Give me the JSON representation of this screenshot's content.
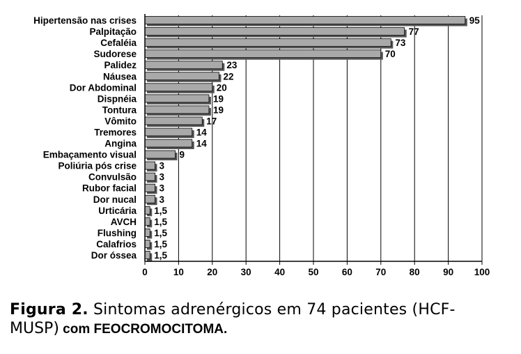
{
  "chart_data": {
    "type": "bar",
    "orientation": "horizontal",
    "categories": [
      "Hipertensão nas crises",
      "Palpitação",
      "Cefaléia",
      "Sudorese",
      "Palidez",
      "Náusea",
      "Dor Abdominal",
      "Dispnéia",
      "Tontura",
      "Vômito",
      "Tremores",
      "Angina",
      "Embaçamento visual",
      "Poliúria pós crise",
      "Convulsão",
      "Rubor facial",
      "Dor nucal",
      "Urticária",
      "AVCH",
      "Flushing",
      "Calafrios",
      "Dor óssea"
    ],
    "values": [
      95,
      77,
      73,
      70,
      23,
      22,
      20,
      19,
      19,
      17,
      14,
      14,
      9,
      3,
      3,
      3,
      3,
      1.5,
      1.5,
      1.5,
      1.5,
      1.5
    ],
    "value_labels": [
      "95",
      "77",
      "73",
      "70",
      "23",
      "22",
      "20",
      "19",
      "19",
      "17",
      "14",
      "14",
      "9",
      "3",
      "3",
      "3",
      "3",
      "1,5",
      "1,5",
      "1,5",
      "1,5",
      "1,5"
    ],
    "xlim": [
      0,
      100
    ],
    "xticks": [
      0,
      10,
      20,
      30,
      40,
      50,
      60,
      70,
      80,
      90,
      100
    ],
    "grid": true,
    "bar_color": "#a9a9a9",
    "bar_shadow_color": "#555555"
  },
  "caption": {
    "figure_label": "Figura 2.",
    "text_part1": " Sintomas adrenérgicos em 74 pacientes (HCF-",
    "text_part2": "MUSP)",
    "text_part3": " com FEOCROMOCITOMA",
    "text_part4": "."
  }
}
